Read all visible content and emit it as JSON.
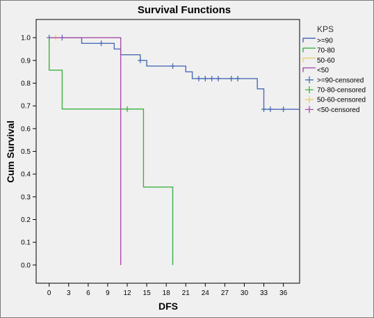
{
  "chart_data": {
    "type": "line",
    "title": "Survival Functions",
    "xlabel": "DFS",
    "ylabel": "Cum Survival",
    "xlim": [
      -2,
      38.5
    ],
    "ylim": [
      -0.08,
      1.08
    ],
    "xticks": [
      "0",
      "3",
      "6",
      "9",
      "12",
      "15",
      "18",
      "21",
      "24",
      "27",
      "30",
      "33",
      "36"
    ],
    "yticks": [
      "0.0",
      "0.1",
      "0.2",
      "0.3",
      "0.4",
      "0.5",
      "0.6",
      "0.7",
      "0.8",
      "0.9",
      "1.0"
    ],
    "grid": false,
    "legend": {
      "title": "KPS",
      "position": "right",
      "entries": [
        {
          "label": ">=90",
          "color": "#4a6bb5",
          "kind": "line"
        },
        {
          "label": "70-80",
          "color": "#3cb043",
          "kind": "line"
        },
        {
          "label": "50-60",
          "color": "#e8d06a",
          "kind": "line"
        },
        {
          "label": "<50",
          "color": "#a64ca6",
          "kind": "line"
        },
        {
          "label": ">=90-censored",
          "color": "#4a6bb5",
          "kind": "cross"
        },
        {
          "label": "70-80-censored",
          "color": "#3cb043",
          "kind": "cross"
        },
        {
          "label": "50-60-censored",
          "color": "#e8d06a",
          "kind": "cross"
        },
        {
          "label": "<50-censored",
          "color": "#a64ca6",
          "kind": "cross"
        }
      ]
    },
    "series": [
      {
        "name": ">=90",
        "color": "#4a6bb5",
        "steps": [
          [
            0,
            1.0
          ],
          [
            5,
            0.975
          ],
          [
            10,
            0.95
          ],
          [
            11,
            0.925
          ],
          [
            14,
            0.9
          ],
          [
            15,
            0.875
          ],
          [
            21,
            0.85
          ],
          [
            22,
            0.82
          ],
          [
            32,
            0.775
          ],
          [
            33,
            0.685
          ],
          [
            38.5,
            0.685
          ]
        ],
        "censored": [
          [
            0,
            1.0
          ],
          [
            2,
            1.0
          ],
          [
            8,
            0.975
          ],
          [
            14,
            0.9
          ],
          [
            19,
            0.875
          ],
          [
            23,
            0.82
          ],
          [
            24,
            0.82
          ],
          [
            25,
            0.82
          ],
          [
            26,
            0.82
          ],
          [
            28,
            0.82
          ],
          [
            29,
            0.82
          ],
          [
            33,
            0.685
          ],
          [
            34,
            0.685
          ],
          [
            36,
            0.685
          ]
        ]
      },
      {
        "name": "70-80",
        "color": "#3cb043",
        "steps": [
          [
            0,
            1.0
          ],
          [
            0,
            0.857
          ],
          [
            2,
            0.686
          ],
          [
            14.5,
            0.343
          ],
          [
            19,
            0.0
          ]
        ],
        "censored": [
          [
            12,
            0.686
          ]
        ]
      },
      {
        "name": "50-60",
        "color": "#e8d06a",
        "steps": [
          [
            0,
            1.0
          ]
        ],
        "censored": [
          [
            1,
            1.0
          ]
        ]
      },
      {
        "name": "<50",
        "color": "#a64ca6",
        "steps": [
          [
            0,
            1.0
          ],
          [
            11,
            0.0
          ]
        ],
        "censored": []
      }
    ]
  }
}
